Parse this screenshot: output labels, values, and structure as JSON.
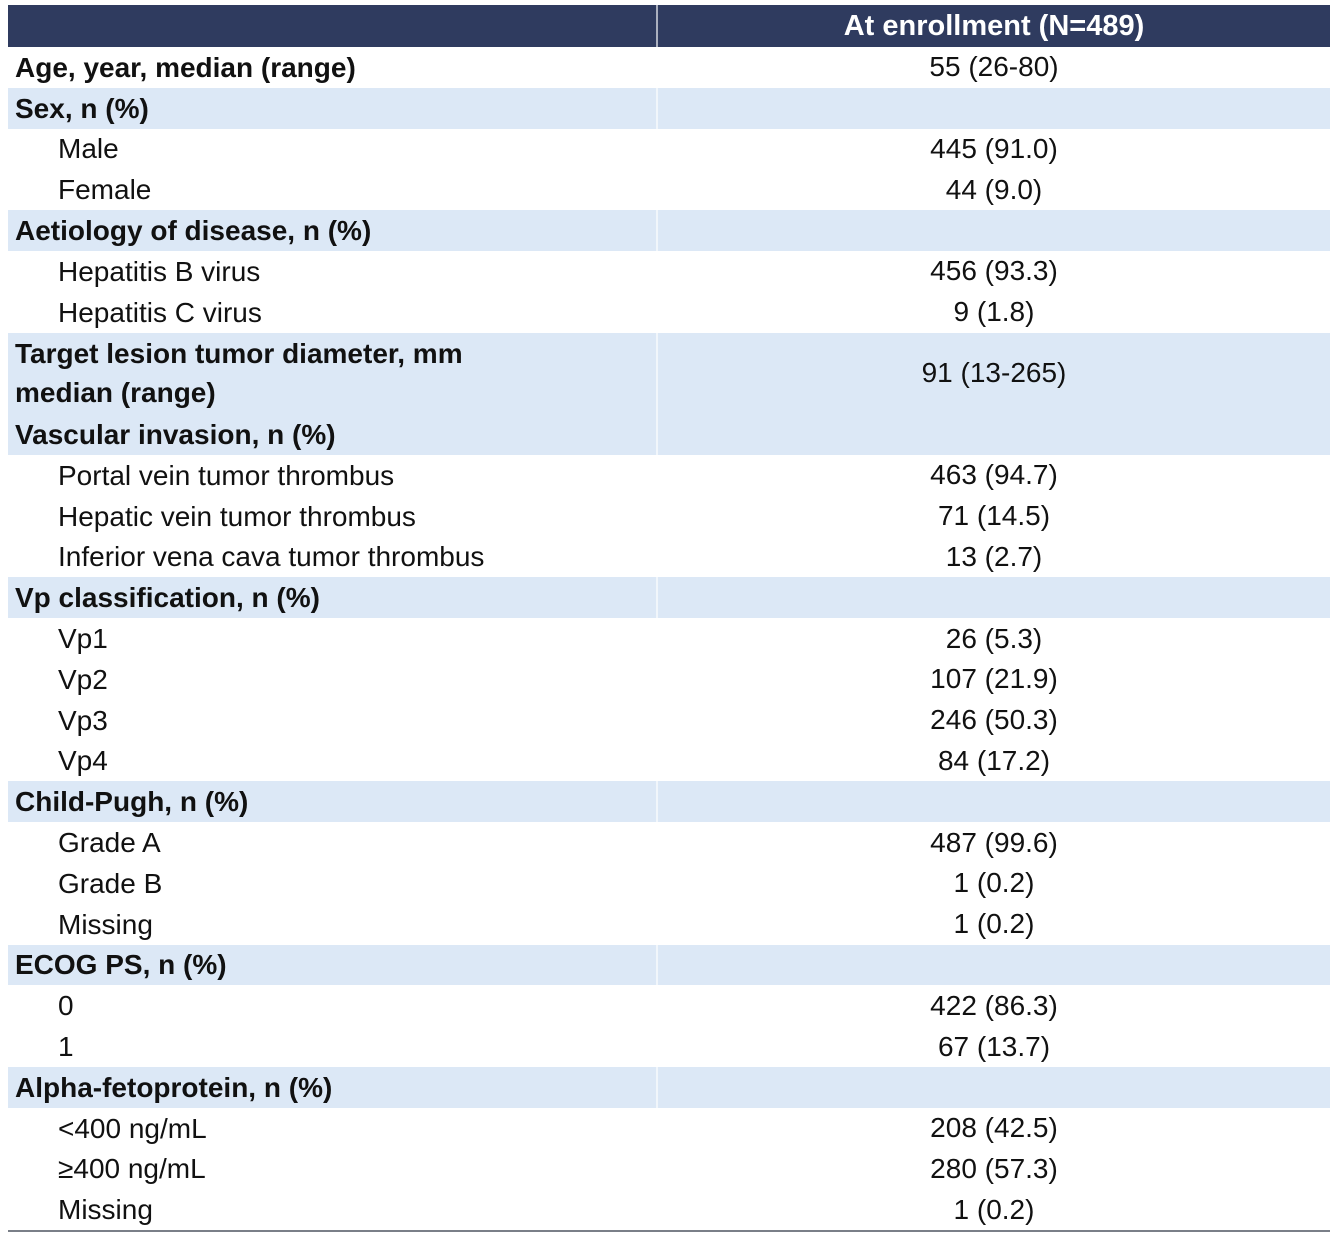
{
  "table": {
    "header": "At enrollment (N=489)",
    "header_color": "#2f3b5f",
    "groups": [
      {
        "title": "Age, year, median (range)",
        "value": "55 (26-80)",
        "color": "#ffffff"
      },
      {
        "title": "Sex, n (%)",
        "color": "#dce8f6",
        "items": [
          [
            "Male",
            "445 (91.0)"
          ],
          [
            "Female",
            "44 (9.0)"
          ]
        ]
      },
      {
        "title": "Aetiology of disease, n (%)",
        "color": "#dce8f6",
        "items": [
          [
            "Hepatitis B virus",
            "456 (93.3)"
          ],
          [
            "Hepatitis C virus",
            "9 (1.8)"
          ]
        ]
      },
      {
        "title": "Target lesion tumor diameter, mm\nmedian (range)",
        "value": "91 (13-265)",
        "color": "#dce8f6"
      },
      {
        "title": "Vascular invasion, n (%)",
        "color": "#dce8f6",
        "items": [
          [
            "Portal vein tumor thrombus",
            "463 (94.7)"
          ],
          [
            "Hepatic vein tumor thrombus",
            "71 (14.5)"
          ],
          [
            "Inferior vena cava tumor thrombus",
            "13 (2.7)"
          ]
        ]
      },
      {
        "title": "Vp classification, n (%)",
        "color": "#dce8f6",
        "items": [
          [
            "Vp1",
            "26 (5.3)"
          ],
          [
            "Vp2",
            "107 (21.9)"
          ],
          [
            "Vp3",
            "246 (50.3)"
          ],
          [
            "Vp4",
            "84 (17.2)"
          ]
        ]
      },
      {
        "title": "Child-Pugh, n (%)",
        "color": "#dce8f6",
        "items": [
          [
            "Grade A",
            "487 (99.6)"
          ],
          [
            "Grade B",
            "1 (0.2)"
          ],
          [
            "Missing",
            "1 (0.2)"
          ]
        ]
      },
      {
        "title": "ECOG PS, n (%)",
        "color": "#dce8f6",
        "items": [
          [
            "0",
            "422 (86.3)"
          ],
          [
            "1",
            "67 (13.7)"
          ]
        ]
      },
      {
        "title": "Alpha-fetoprotein, n (%)",
        "color": "#dce8f6",
        "items": [
          [
            "<400 ng/mL",
            "208 (42.5)"
          ],
          [
            "≥400 ng/mL",
            "280 (57.3)"
          ],
          [
            "Missing",
            "1 (0.2)"
          ]
        ]
      }
    ]
  }
}
